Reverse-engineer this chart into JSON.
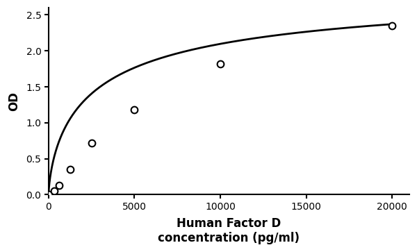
{
  "x_data": [
    0,
    312,
    625,
    1250,
    2500,
    5000,
    10000,
    20000
  ],
  "y_data": [
    0.0,
    0.05,
    0.13,
    0.35,
    0.72,
    1.18,
    1.82,
    2.35
  ],
  "xlabel": "Human Factor D\nconcentration (pg/ml)",
  "ylabel": "OD",
  "xlim": [
    0,
    21000
  ],
  "ylim": [
    0,
    2.6
  ],
  "xticks": [
    0,
    5000,
    10000,
    15000,
    20000
  ],
  "yticks": [
    0,
    0.5,
    1.0,
    1.5,
    2.0,
    2.5
  ],
  "line_color": "#000000",
  "marker_color": "#ffffff",
  "marker_edge_color": "#000000",
  "marker_size": 7,
  "line_width": 2.0,
  "bg_color": "#ffffff"
}
